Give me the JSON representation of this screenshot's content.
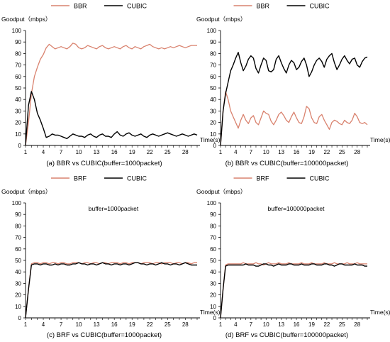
{
  "chart_data": [
    {
      "type": "line",
      "legend": [
        "BBR",
        "CUBIC"
      ],
      "legend_placement": "top",
      "ylabel": "Goodput（mbps）",
      "xlabel": "Time(s)",
      "caption": "(a) BBR vs CUBIC(buffer=1000packet)",
      "annotation": "",
      "ylim": [
        0,
        100
      ],
      "xlim": [
        1,
        30
      ],
      "yticks": [
        "0",
        "10",
        "20",
        "30",
        "40",
        "50",
        "60",
        "70",
        "80",
        "90",
        "100"
      ],
      "xticks": [
        "1",
        "4",
        "7",
        "10",
        "13",
        "16",
        "19",
        "22",
        "25",
        "28"
      ],
      "colors": [
        "#d9826e",
        "#000000"
      ],
      "x": [
        1,
        1.5,
        2,
        2.5,
        3,
        3.5,
        4,
        4.5,
        5,
        5.5,
        6,
        6.5,
        7,
        7.5,
        8,
        8.5,
        9,
        9.5,
        10,
        10.5,
        11,
        11.5,
        12,
        12.5,
        13,
        13.5,
        14,
        14.5,
        15,
        15.5,
        16,
        16.5,
        17,
        17.5,
        18,
        18.5,
        19,
        19.5,
        20,
        20.5,
        21,
        21.5,
        22,
        22.5,
        23,
        23.5,
        24,
        24.5,
        25,
        25.5,
        26,
        26.5,
        27,
        27.5,
        28,
        28.5,
        29,
        29.5,
        30
      ],
      "series": [
        {
          "name": "BBR",
          "values": [
            0,
            20,
            45,
            60,
            68,
            75,
            79,
            85,
            88,
            86,
            84,
            85,
            86,
            85,
            84,
            86,
            89,
            88,
            85,
            84,
            85,
            87,
            86,
            85,
            84,
            86,
            87,
            85,
            84,
            85,
            86,
            85,
            84,
            86,
            87,
            85,
            84,
            86,
            85,
            84,
            86,
            87,
            88,
            86,
            85,
            84,
            85,
            84,
            85,
            86,
            85,
            86,
            87,
            86,
            85,
            86,
            87,
            87,
            87
          ]
        },
        {
          "name": "CUBIC",
          "values": [
            0,
            35,
            47,
            40,
            28,
            22,
            15,
            7,
            8,
            10,
            9,
            9,
            8,
            7,
            6,
            8,
            10,
            9,
            8,
            8,
            7,
            9,
            10,
            8,
            7,
            9,
            10,
            8,
            8,
            7,
            10,
            12,
            9,
            8,
            10,
            11,
            9,
            8,
            9,
            10,
            8,
            7,
            9,
            10,
            9,
            8,
            9,
            10,
            11,
            10,
            9,
            8,
            9,
            10,
            9,
            8,
            9,
            10,
            9
          ]
        }
      ]
    },
    {
      "type": "line",
      "legend": [
        "BBR",
        "CUBIC"
      ],
      "legend_placement": "top",
      "ylabel": "Goodput（mbps）",
      "xlabel": "Time(s)",
      "caption": "(b) BBR vs CUBIC(buffer=100000packet)",
      "annotation": "",
      "ylim": [
        0,
        100
      ],
      "xlim": [
        1,
        30
      ],
      "yticks": [
        "0",
        "10",
        "20",
        "30",
        "40",
        "50",
        "60",
        "70",
        "80",
        "90",
        "100"
      ],
      "xticks": [
        "1",
        "4",
        "7",
        "10",
        "13",
        "16",
        "19",
        "22",
        "25",
        "28"
      ],
      "colors": [
        "#d9826e",
        "#000000"
      ],
      "x": [
        1,
        1.5,
        2,
        2.5,
        3,
        3.5,
        4,
        4.5,
        5,
        5.5,
        6,
        6.5,
        7,
        7.5,
        8,
        8.5,
        9,
        9.5,
        10,
        10.5,
        11,
        11.5,
        12,
        12.5,
        13,
        13.5,
        14,
        14.5,
        15,
        15.5,
        16,
        16.5,
        17,
        17.5,
        18,
        18.5,
        19,
        19.5,
        20,
        20.5,
        21,
        21.5,
        22,
        22.5,
        23,
        23.5,
        24,
        24.5,
        25,
        25.5,
        26,
        26.5,
        27,
        27.5,
        28,
        28.5,
        29,
        29.5,
        30
      ],
      "series": [
        {
          "name": "BBR",
          "values": [
            0,
            30,
            47,
            40,
            30,
            25,
            20,
            15,
            22,
            27,
            22,
            19,
            24,
            26,
            20,
            18,
            24,
            30,
            28,
            27,
            21,
            18,
            22,
            27,
            29,
            26,
            22,
            20,
            25,
            29,
            24,
            20,
            19,
            25,
            34,
            32,
            24,
            20,
            19,
            25,
            27,
            22,
            18,
            14,
            20,
            22,
            21,
            19,
            18,
            22,
            20,
            19,
            22,
            28,
            25,
            20,
            19,
            20,
            18
          ]
        },
        {
          "name": "CUBIC",
          "values": [
            0,
            30,
            45,
            55,
            65,
            70,
            76,
            81,
            72,
            65,
            69,
            75,
            78,
            76,
            67,
            63,
            70,
            76,
            74,
            65,
            64,
            66,
            75,
            78,
            72,
            67,
            63,
            70,
            74,
            72,
            66,
            68,
            73,
            76,
            70,
            60,
            64,
            70,
            74,
            76,
            73,
            68,
            75,
            78,
            80,
            72,
            66,
            70,
            75,
            78,
            74,
            71,
            75,
            76,
            70,
            68,
            73,
            76,
            77
          ]
        }
      ]
    },
    {
      "type": "line",
      "legend": [
        "BRF",
        "CUBIC"
      ],
      "legend_placement": "top",
      "ylabel": "Goodput（mbps）",
      "xlabel": "Time(s)",
      "caption": "(c) BRF vs CUBIC(buffer=1000packet)",
      "annotation": "buffer=1000packet",
      "ylim": [
        0,
        100
      ],
      "xlim": [
        1,
        30
      ],
      "yticks": [
        "0",
        "10",
        "20",
        "30",
        "40",
        "50",
        "60",
        "70",
        "80",
        "90",
        "100"
      ],
      "xticks": [
        "1",
        "4",
        "7",
        "10",
        "13",
        "16",
        "19",
        "22",
        "25",
        "28"
      ],
      "colors": [
        "#d9826e",
        "#000000"
      ],
      "x": [
        1,
        1.5,
        2,
        2.5,
        3,
        3.5,
        4,
        4.5,
        5,
        5.5,
        6,
        6.5,
        7,
        7.5,
        8,
        8.5,
        9,
        9.5,
        10,
        10.5,
        11,
        11.5,
        12,
        12.5,
        13,
        13.5,
        14,
        14.5,
        15,
        15.5,
        16,
        16.5,
        17,
        17.5,
        18,
        18.5,
        19,
        19.5,
        20,
        20.5,
        21,
        21.5,
        22,
        22.5,
        23,
        23.5,
        24,
        24.5,
        25,
        25.5,
        26,
        26.5,
        27,
        27.5,
        28,
        28.5,
        29,
        29.5,
        30
      ],
      "series": [
        {
          "name": "BRF",
          "values": [
            0,
            25,
            47,
            48,
            48,
            47,
            48,
            48,
            47,
            48,
            48,
            47,
            48,
            48,
            47,
            47,
            48,
            48,
            48,
            47,
            48,
            48,
            47,
            48,
            48,
            47,
            48,
            48,
            47,
            48,
            48,
            48,
            47,
            48,
            48,
            47,
            48,
            48,
            48,
            47,
            48,
            48,
            48,
            47,
            48,
            48,
            47,
            48,
            48,
            48,
            47,
            48,
            48,
            47,
            48,
            48,
            47,
            48,
            48
          ]
        },
        {
          "name": "CUBIC",
          "values": [
            0,
            25,
            46,
            47,
            47,
            46,
            47,
            47,
            46,
            46,
            47,
            46,
            47,
            47,
            46,
            46,
            47,
            47,
            48,
            47,
            47,
            46,
            47,
            47,
            46,
            47,
            48,
            47,
            47,
            46,
            47,
            47,
            46,
            47,
            47,
            46,
            47,
            48,
            48,
            47,
            47,
            46,
            47,
            47,
            46,
            47,
            48,
            47,
            47,
            46,
            47,
            47,
            46,
            47,
            48,
            47,
            46,
            46,
            46
          ]
        }
      ]
    },
    {
      "type": "line",
      "legend": [
        "BRF",
        "CUBIC"
      ],
      "legend_placement": "top",
      "ylabel": "Goodput（mbps）",
      "xlabel": "Time(s)",
      "caption": "(d) BRF vs CUBIC(buffer=100000packet)",
      "annotation": "buffer=100000packet",
      "ylim": [
        0,
        100
      ],
      "xlim": [
        1,
        30
      ],
      "yticks": [
        "0",
        "10",
        "20",
        "30",
        "40",
        "50",
        "60",
        "70",
        "80",
        "90",
        "100"
      ],
      "xticks": [
        "1",
        "4",
        "7",
        "10",
        "13",
        "16",
        "19",
        "22",
        "25",
        "28"
      ],
      "colors": [
        "#d9826e",
        "#000000"
      ],
      "x": [
        1,
        1.5,
        2,
        2.5,
        3,
        3.5,
        4,
        4.5,
        5,
        5.5,
        6,
        6.5,
        7,
        7.5,
        8,
        8.5,
        9,
        9.5,
        10,
        10.5,
        11,
        11.5,
        12,
        12.5,
        13,
        13.5,
        14,
        14.5,
        15,
        15.5,
        16,
        16.5,
        17,
        17.5,
        18,
        18.5,
        19,
        19.5,
        20,
        20.5,
        21,
        21.5,
        22,
        22.5,
        23,
        23.5,
        24,
        24.5,
        25,
        25.5,
        26,
        26.5,
        27,
        27.5,
        28,
        28.5,
        29,
        29.5,
        30
      ],
      "series": [
        {
          "name": "BRF",
          "values": [
            0,
            25,
            46,
            47,
            47,
            47,
            47,
            47,
            47,
            48,
            47,
            47,
            47,
            47,
            48,
            47,
            47,
            46,
            47,
            48,
            47,
            47,
            47,
            48,
            47,
            47,
            47,
            48,
            47,
            47,
            47,
            47,
            48,
            47,
            47,
            47,
            48,
            47,
            47,
            47,
            47,
            48,
            47,
            47,
            47,
            48,
            47,
            47,
            47,
            47,
            48,
            47,
            47,
            47,
            48,
            47,
            47,
            47,
            47
          ]
        },
        {
          "name": "CUBIC",
          "values": [
            0,
            25,
            45,
            46,
            46,
            46,
            46,
            46,
            46,
            46,
            47,
            46,
            46,
            46,
            45,
            45,
            46,
            47,
            47,
            46,
            46,
            45,
            46,
            47,
            46,
            46,
            46,
            47,
            47,
            46,
            46,
            46,
            47,
            46,
            46,
            46,
            47,
            47,
            46,
            46,
            46,
            47,
            47,
            46,
            46,
            45,
            46,
            47,
            47,
            46,
            46,
            46,
            46,
            47,
            46,
            46,
            46,
            45,
            45
          ]
        }
      ]
    }
  ]
}
